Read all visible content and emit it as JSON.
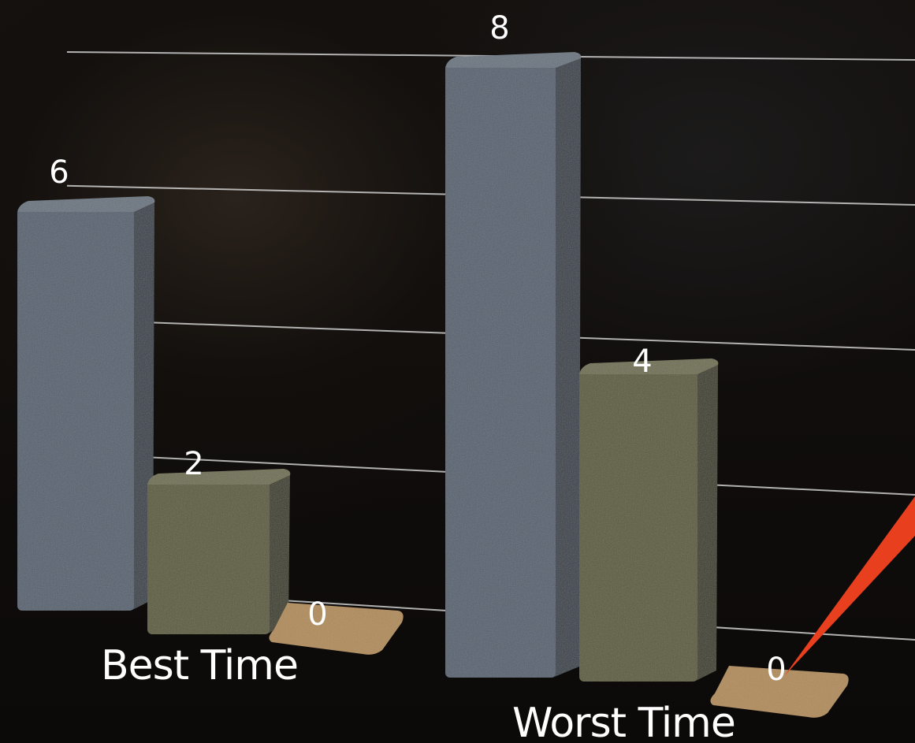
{
  "chart_data": {
    "type": "bar",
    "categories": [
      "Best Time",
      "Worst Time"
    ],
    "series": [
      {
        "values": [
          6,
          8
        ]
      },
      {
        "values": [
          2,
          4
        ]
      },
      {
        "values": [
          0,
          0
        ]
      }
    ],
    "data_labels": [
      [
        "6",
        "2",
        "0"
      ],
      [
        "8",
        "4",
        "0"
      ]
    ],
    "ylim": [
      0,
      8
    ],
    "grid": true,
    "three_d": true,
    "colors": [
      "#56626f",
      "#5b5b3a",
      "#b08b58"
    ],
    "pointer_color": "#e8401f"
  }
}
